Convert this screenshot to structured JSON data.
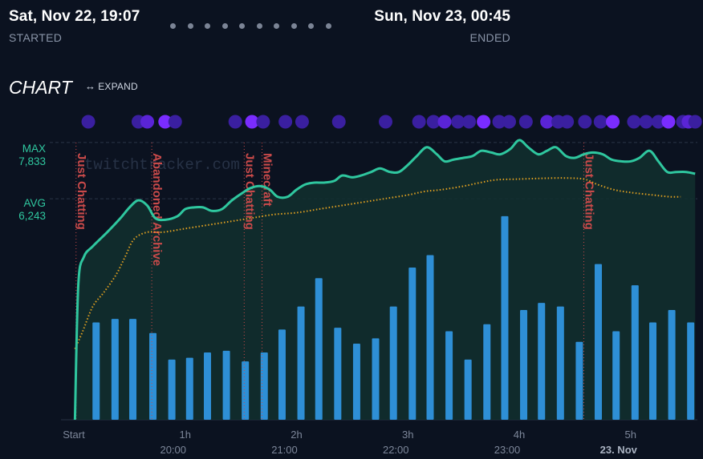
{
  "stream": {
    "started_date": "Sat, Nov 22, 19:07",
    "started_label": "STARTED",
    "ended_date": "Sun, Nov 23, 00:45",
    "ended_label": "ENDED"
  },
  "chart_header": {
    "title": "CHART",
    "expand_label": "EXPAND"
  },
  "stats": {
    "max_label": "MAX",
    "max_value": "7,833",
    "avg_label": "AVG",
    "avg_value": "6,243"
  },
  "watermark": "twitchtracker.com",
  "colors": {
    "background": "#0b1220",
    "viewers_line": "#2fc79f",
    "viewers_fill": "#12302f",
    "average_line": "#e0a020",
    "bars": "#2e8fd6",
    "category_marker": "#c94a4a",
    "dot_dark": "#3a1fa0",
    "dot_mid": "#5a24d6",
    "dot_bright": "#7a2cff"
  },
  "chart_data": {
    "type": "line",
    "x_unit": "hours since stream start",
    "xlim": [
      0,
      5.6
    ],
    "ylim": [
      0,
      8600
    ],
    "x_ticks": [
      {
        "x": 0,
        "label": "Start",
        "sub": ""
      },
      {
        "x": 1,
        "label": "1h",
        "sub": "20:00"
      },
      {
        "x": 2,
        "label": "2h",
        "sub": "21:00"
      },
      {
        "x": 3,
        "label": "3h",
        "sub": "22:00"
      },
      {
        "x": 4,
        "label": "4h",
        "sub": "23:00"
      },
      {
        "x": 5,
        "label": "5h",
        "sub": "23. Nov"
      }
    ],
    "reference_lines": [
      {
        "name": "MAX",
        "y": 7833
      },
      {
        "name": "AVG",
        "y": 6243
      }
    ],
    "series": [
      {
        "points": [
          [
            0.01,
            0
          ],
          [
            0.04,
            3800
          ],
          [
            0.09,
            4600
          ],
          [
            0.17,
            4900
          ],
          [
            0.3,
            5300
          ],
          [
            0.42,
            5700
          ],
          [
            0.5,
            6000
          ],
          [
            0.58,
            6200
          ],
          [
            0.66,
            6050
          ],
          [
            0.73,
            5700
          ],
          [
            0.82,
            5650
          ],
          [
            0.93,
            5750
          ],
          [
            1.0,
            5950
          ],
          [
            1.08,
            6000
          ],
          [
            1.16,
            6000
          ],
          [
            1.24,
            5900
          ],
          [
            1.33,
            5950
          ],
          [
            1.42,
            6200
          ],
          [
            1.51,
            6400
          ],
          [
            1.59,
            6550
          ],
          [
            1.68,
            6600
          ],
          [
            1.76,
            6500
          ],
          [
            1.83,
            6300
          ],
          [
            1.92,
            6300
          ],
          [
            2.0,
            6500
          ],
          [
            2.08,
            6650
          ],
          [
            2.16,
            6700
          ],
          [
            2.25,
            6700
          ],
          [
            2.34,
            6750
          ],
          [
            2.41,
            6900
          ],
          [
            2.5,
            6850
          ],
          [
            2.58,
            6900
          ],
          [
            2.67,
            7000
          ],
          [
            2.75,
            7100
          ],
          [
            2.84,
            7000
          ],
          [
            2.92,
            7000
          ],
          [
            3.0,
            7200
          ],
          [
            3.08,
            7450
          ],
          [
            3.17,
            7700
          ],
          [
            3.26,
            7500
          ],
          [
            3.33,
            7300
          ],
          [
            3.41,
            7350
          ],
          [
            3.5,
            7400
          ],
          [
            3.58,
            7450
          ],
          [
            3.66,
            7600
          ],
          [
            3.75,
            7550
          ],
          [
            3.83,
            7500
          ],
          [
            3.92,
            7650
          ],
          [
            4.0,
            7900
          ],
          [
            4.08,
            7700
          ],
          [
            4.17,
            7500
          ],
          [
            4.25,
            7600
          ],
          [
            4.33,
            7700
          ],
          [
            4.42,
            7450
          ],
          [
            4.5,
            7400
          ],
          [
            4.58,
            7500
          ],
          [
            4.66,
            7550
          ],
          [
            4.75,
            7500
          ],
          [
            4.83,
            7350
          ],
          [
            4.92,
            7300
          ],
          [
            5.0,
            7300
          ],
          [
            5.08,
            7400
          ],
          [
            5.17,
            7600
          ],
          [
            5.25,
            7300
          ],
          [
            5.33,
            7000
          ],
          [
            5.41,
            7000
          ],
          [
            5.5,
            7000
          ],
          [
            5.58,
            6950
          ]
        ],
        "style": "area"
      },
      {
        "points": [
          [
            0.01,
            2000
          ],
          [
            0.08,
            2500
          ],
          [
            0.17,
            3200
          ],
          [
            0.27,
            3600
          ],
          [
            0.38,
            4100
          ],
          [
            0.46,
            4600
          ],
          [
            0.54,
            5100
          ],
          [
            0.66,
            5300
          ],
          [
            0.8,
            5300
          ],
          [
            1.0,
            5400
          ],
          [
            1.2,
            5500
          ],
          [
            1.4,
            5600
          ],
          [
            1.6,
            5700
          ],
          [
            1.8,
            5800
          ],
          [
            2.0,
            5850
          ],
          [
            2.2,
            5950
          ],
          [
            2.4,
            6050
          ],
          [
            2.6,
            6150
          ],
          [
            2.8,
            6250
          ],
          [
            3.0,
            6350
          ],
          [
            3.15,
            6450
          ],
          [
            3.3,
            6500
          ],
          [
            3.5,
            6600
          ],
          [
            3.65,
            6700
          ],
          [
            3.8,
            6780
          ],
          [
            4.0,
            6800
          ],
          [
            4.2,
            6820
          ],
          [
            4.4,
            6830
          ],
          [
            4.58,
            6800
          ],
          [
            4.7,
            6650
          ],
          [
            4.85,
            6500
          ],
          [
            5.0,
            6420
          ],
          [
            5.2,
            6350
          ],
          [
            5.35,
            6300
          ],
          [
            5.45,
            6300
          ]
        ],
        "style": "dotted"
      }
    ],
    "bars": {
      "x": [
        0.2,
        0.37,
        0.53,
        0.71,
        0.88,
        1.04,
        1.2,
        1.37,
        1.54,
        1.71,
        1.87,
        2.04,
        2.2,
        2.37,
        2.54,
        2.71,
        2.87,
        3.04,
        3.2,
        3.37,
        3.54,
        3.71,
        3.87,
        4.04,
        4.2,
        4.37,
        4.54,
        4.71,
        4.87,
        5.04,
        5.2,
        5.37,
        5.54
      ],
      "values": [
        2750,
        2850,
        2850,
        2450,
        1700,
        1750,
        1900,
        1950,
        1650,
        1900,
        2550,
        3200,
        4000,
        2600,
        2150,
        2300,
        3200,
        4300,
        4650,
        2500,
        1700,
        2700,
        5750,
        3100,
        3300,
        3200,
        2200,
        4400,
        2500,
        3800,
        2750,
        3100,
        2750
      ]
    },
    "category_markers": [
      {
        "x": 0.02,
        "label": "Just Chatting"
      },
      {
        "x": 0.7,
        "label": "Abandoned Archive"
      },
      {
        "x": 1.53,
        "label": "Just Chatting"
      },
      {
        "x": 1.69,
        "label": "Minecraft"
      },
      {
        "x": 4.58,
        "label": "Just Chatting"
      }
    ],
    "activity_dots": [
      {
        "x": 0.13,
        "level": 1
      },
      {
        "x": 0.58,
        "level": 1
      },
      {
        "x": 0.66,
        "level": 2
      },
      {
        "x": 0.82,
        "level": 3
      },
      {
        "x": 0.91,
        "level": 1
      },
      {
        "x": 1.45,
        "level": 1
      },
      {
        "x": 1.6,
        "level": 3
      },
      {
        "x": 1.7,
        "level": 1
      },
      {
        "x": 1.9,
        "level": 1
      },
      {
        "x": 2.05,
        "level": 1
      },
      {
        "x": 2.38,
        "level": 1
      },
      {
        "x": 2.8,
        "level": 1
      },
      {
        "x": 3.1,
        "level": 1
      },
      {
        "x": 3.23,
        "level": 1
      },
      {
        "x": 3.33,
        "level": 2
      },
      {
        "x": 3.45,
        "level": 1
      },
      {
        "x": 3.55,
        "level": 1
      },
      {
        "x": 3.68,
        "level": 3
      },
      {
        "x": 3.82,
        "level": 1
      },
      {
        "x": 3.91,
        "level": 1
      },
      {
        "x": 4.06,
        "level": 1
      },
      {
        "x": 4.25,
        "level": 2
      },
      {
        "x": 4.35,
        "level": 1
      },
      {
        "x": 4.43,
        "level": 1
      },
      {
        "x": 4.59,
        "level": 1
      },
      {
        "x": 4.73,
        "level": 1
      },
      {
        "x": 4.84,
        "level": 3
      },
      {
        "x": 5.03,
        "level": 1
      },
      {
        "x": 5.14,
        "level": 1
      },
      {
        "x": 5.25,
        "level": 1
      },
      {
        "x": 5.34,
        "level": 3
      },
      {
        "x": 5.47,
        "level": 1
      },
      {
        "x": 5.52,
        "level": 2
      },
      {
        "x": 5.58,
        "level": 1
      }
    ]
  }
}
